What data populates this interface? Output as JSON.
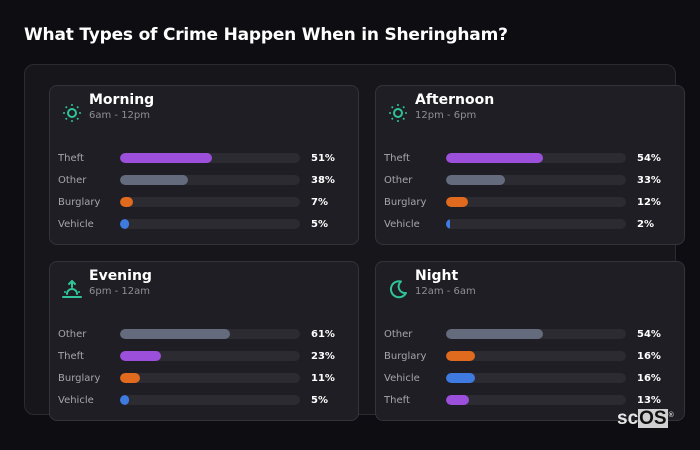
{
  "title": "What Types of Crime Happen When in Sheringham?",
  "colors": {
    "accent": "#2fc49a",
    "theft": "#9b4fdb",
    "other": "#636b7c",
    "burglary": "#e06a1e",
    "vehicle": "#3f7ae0",
    "track": "#2c2b31",
    "background": "#0e0d12",
    "card": "#1f1e24"
  },
  "cards": [
    {
      "name": "Morning",
      "time": "6am - 12pm",
      "icon": "sun-icon",
      "rows": [
        {
          "label": "Theft",
          "value": "51%",
          "pct": 51,
          "color": "#9b4fdb"
        },
        {
          "label": "Other",
          "value": "38%",
          "pct": 38,
          "color": "#636b7c"
        },
        {
          "label": "Burglary",
          "value": "7%",
          "pct": 7,
          "color": "#e06a1e"
        },
        {
          "label": "Vehicle",
          "value": "5%",
          "pct": 5,
          "color": "#3f7ae0"
        }
      ]
    },
    {
      "name": "Afternoon",
      "time": "12pm - 6pm",
      "icon": "sun-icon",
      "rows": [
        {
          "label": "Theft",
          "value": "54%",
          "pct": 54,
          "color": "#9b4fdb"
        },
        {
          "label": "Other",
          "value": "33%",
          "pct": 33,
          "color": "#636b7c"
        },
        {
          "label": "Burglary",
          "value": "12%",
          "pct": 12,
          "color": "#e06a1e"
        },
        {
          "label": "Vehicle",
          "value": "2%",
          "pct": 2,
          "color": "#3f7ae0"
        }
      ]
    },
    {
      "name": "Evening",
      "time": "6pm - 12am",
      "icon": "sunset-icon",
      "rows": [
        {
          "label": "Other",
          "value": "61%",
          "pct": 61,
          "color": "#636b7c"
        },
        {
          "label": "Theft",
          "value": "23%",
          "pct": 23,
          "color": "#9b4fdb"
        },
        {
          "label": "Burglary",
          "value": "11%",
          "pct": 11,
          "color": "#e06a1e"
        },
        {
          "label": "Vehicle",
          "value": "5%",
          "pct": 5,
          "color": "#3f7ae0"
        }
      ]
    },
    {
      "name": "Night",
      "time": "12am - 6am",
      "icon": "moon-icon",
      "rows": [
        {
          "label": "Other",
          "value": "54%",
          "pct": 54,
          "color": "#636b7c"
        },
        {
          "label": "Burglary",
          "value": "16%",
          "pct": 16,
          "color": "#e06a1e"
        },
        {
          "label": "Vehicle",
          "value": "16%",
          "pct": 16,
          "color": "#3f7ae0"
        },
        {
          "label": "Theft",
          "value": "13%",
          "pct": 13,
          "color": "#9b4fdb"
        }
      ]
    }
  ],
  "logo": {
    "sc": "sc",
    "os": "OS",
    "reg": "®"
  },
  "chart_data": [
    {
      "type": "bar",
      "orientation": "horizontal",
      "title": "Morning (6am - 12pm)",
      "categories": [
        "Theft",
        "Other",
        "Burglary",
        "Vehicle"
      ],
      "values": [
        51,
        38,
        7,
        5
      ],
      "unit": "%",
      "xlim": [
        0,
        100
      ]
    },
    {
      "type": "bar",
      "orientation": "horizontal",
      "title": "Afternoon (12pm - 6pm)",
      "categories": [
        "Theft",
        "Other",
        "Burglary",
        "Vehicle"
      ],
      "values": [
        54,
        33,
        12,
        2
      ],
      "unit": "%",
      "xlim": [
        0,
        100
      ]
    },
    {
      "type": "bar",
      "orientation": "horizontal",
      "title": "Evening (6pm - 12am)",
      "categories": [
        "Other",
        "Theft",
        "Burglary",
        "Vehicle"
      ],
      "values": [
        61,
        23,
        11,
        5
      ],
      "unit": "%",
      "xlim": [
        0,
        100
      ]
    },
    {
      "type": "bar",
      "orientation": "horizontal",
      "title": "Night (12am - 6am)",
      "categories": [
        "Other",
        "Burglary",
        "Vehicle",
        "Theft"
      ],
      "values": [
        54,
        16,
        16,
        13
      ],
      "unit": "%",
      "xlim": [
        0,
        100
      ]
    }
  ]
}
